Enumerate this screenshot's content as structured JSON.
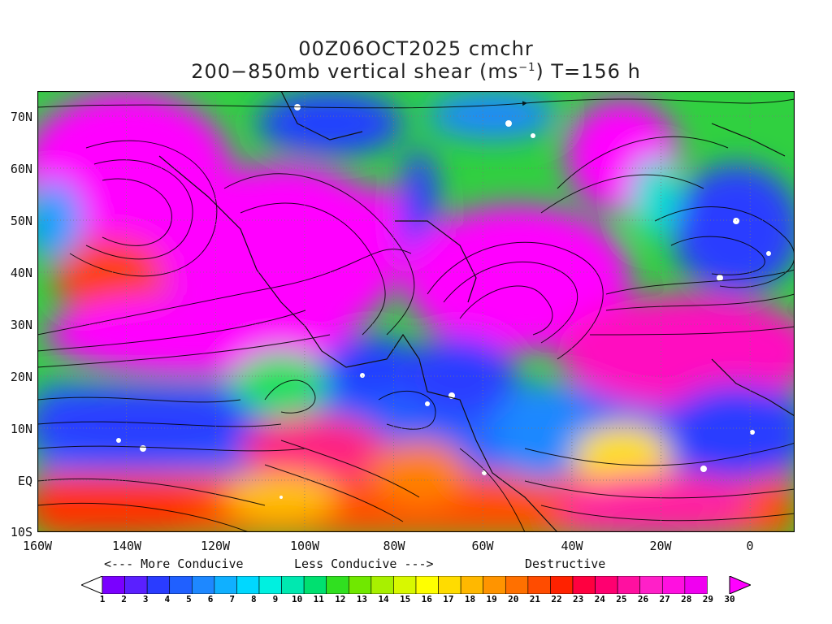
{
  "title": {
    "line1": "00Z06OCT2025 cmchr",
    "line2_main": "200−850mb vertical shear (ms",
    "line2_sup": "−1",
    "line2_end": ") T=156 h"
  },
  "map": {
    "lon_labels": [
      "160W",
      "140W",
      "120W",
      "100W",
      "80W",
      "60W",
      "40W",
      "20W",
      "0"
    ],
    "lat_labels": [
      "70N",
      "60N",
      "50N",
      "40N",
      "30N",
      "20N",
      "10N",
      "EQ",
      "10S"
    ],
    "lon_range": [
      -160,
      10
    ],
    "lat_range": [
      -10,
      75
    ]
  },
  "legend": {
    "more_conducive": "<--- More Conducive",
    "less_conducive": "Less Conducive --->",
    "destructive": "Destructive",
    "ticks": [
      "1",
      "2",
      "3",
      "4",
      "5",
      "6",
      "7",
      "8",
      "9",
      "10",
      "11",
      "12",
      "13",
      "14",
      "15",
      "16",
      "17",
      "18",
      "19",
      "20",
      "21",
      "22",
      "23",
      "24",
      "25",
      "26",
      "27",
      "28",
      "29",
      "30"
    ],
    "colors": [
      "#ffffff",
      "#7a00ff",
      "#5a20ff",
      "#2a3cff",
      "#2060ff",
      "#1e88ff",
      "#10b0ff",
      "#00d8ff",
      "#00f0e0",
      "#00e8b0",
      "#00e070",
      "#30e020",
      "#70e800",
      "#a8f000",
      "#d8f800",
      "#ffff00",
      "#ffdc00",
      "#ffb800",
      "#ff9400",
      "#ff7000",
      "#ff4c00",
      "#ff2200",
      "#ff0040",
      "#ff0070",
      "#ff10a0",
      "#ff20c8",
      "#ff10e0",
      "#f000f0",
      "#ff00ff"
    ]
  }
}
